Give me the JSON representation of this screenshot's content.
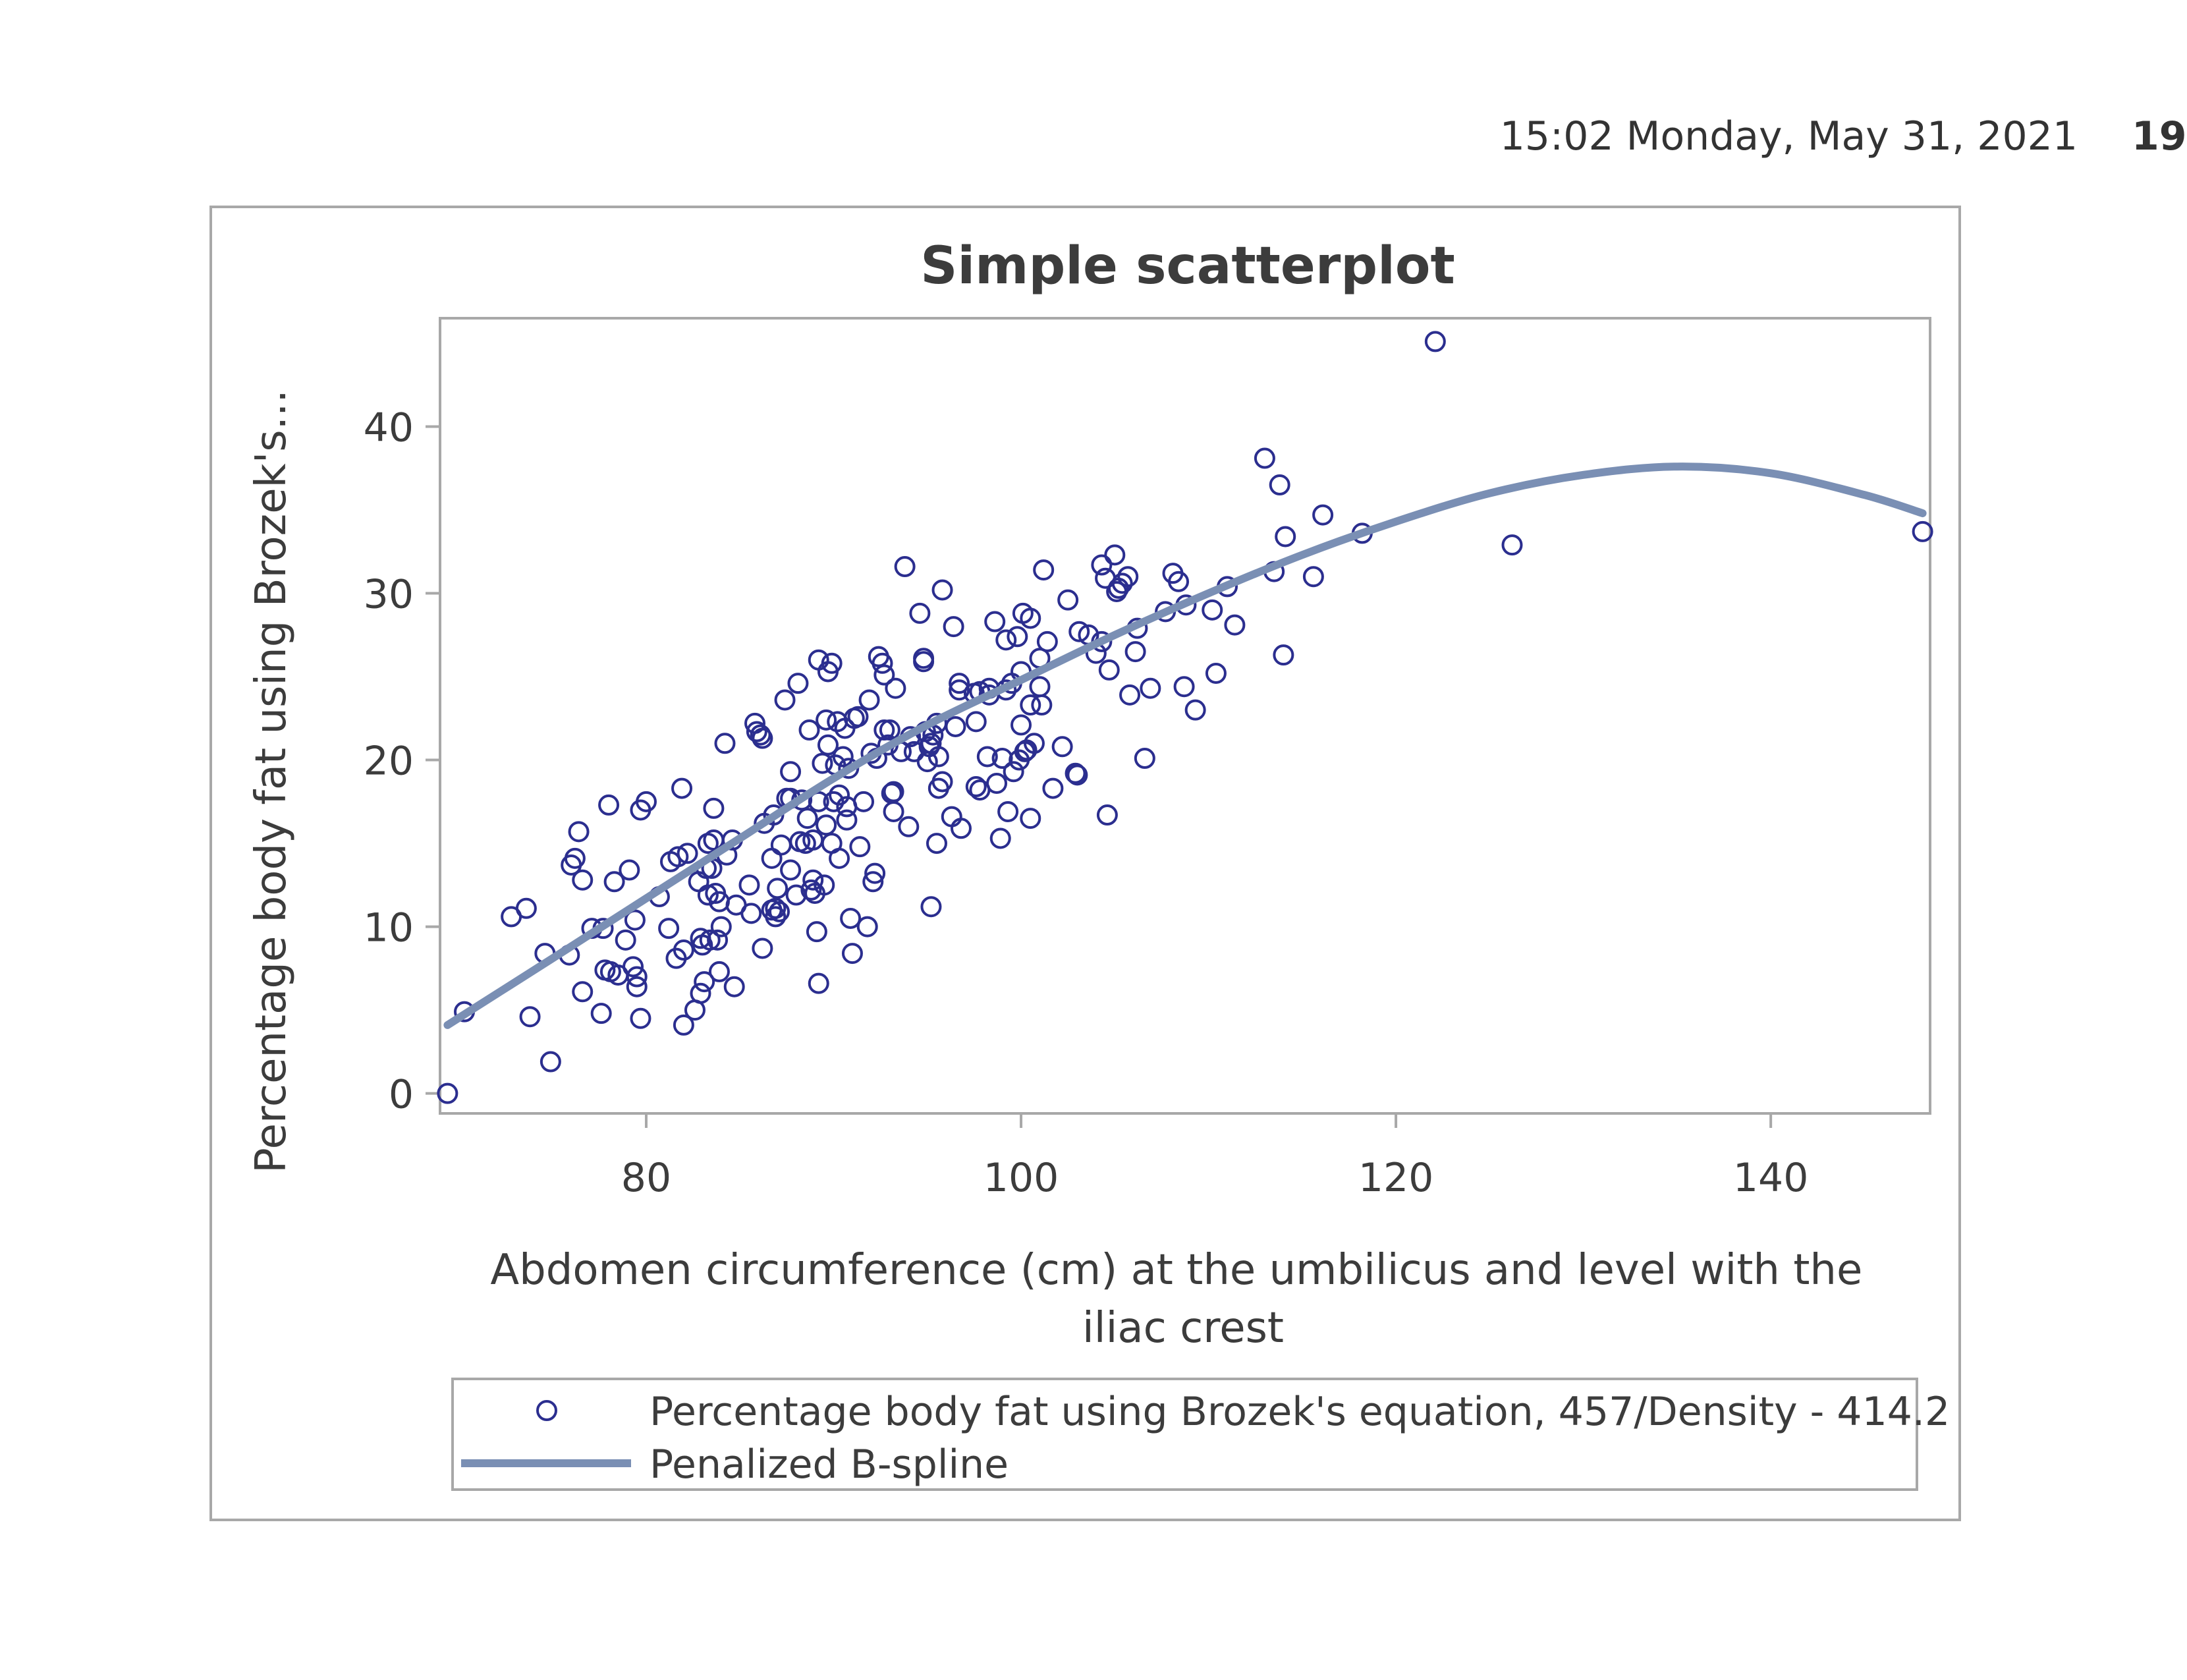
{
  "header": {
    "timestamp": "15:02 Monday, May 31, 2021",
    "page_number": "19"
  },
  "colors": {
    "marker": "#2b2e8f",
    "spline": "#7a8fb4",
    "frame": "#a8a8a8",
    "text": "#3c3c3c"
  },
  "chart_data": {
    "type": "scatter",
    "title": "Simple scatterplot",
    "xlabel": "Abdomen circumference (cm) at the umbilicus and level with the iliac crest",
    "xlabel_lines": [
      "Abdomen circumference (cm) at the umbilicus and level with the",
      "iliac crest"
    ],
    "ylabel": "Percentage body fat using Brozek's...",
    "xlim": [
      69,
      148.5
    ],
    "ylim": [
      -1.2,
      46.5
    ],
    "xticks": [
      80,
      100,
      120,
      140
    ],
    "yticks": [
      0,
      10,
      20,
      30,
      40
    ],
    "grid": false,
    "legend_position": "bottom",
    "legend": [
      {
        "label": "Percentage body fat using Brozek's equation, 457/Density - 414.2",
        "symbol": "circle"
      },
      {
        "label": "Penalized B-spline",
        "symbol": "line"
      }
    ],
    "series": [
      {
        "name": "Percentage body fat using Brozek's equation, 457/Density - 414.2",
        "kind": "scatter",
        "points": [
          [
            69.4,
            0
          ],
          [
            70.3,
            4.9
          ],
          [
            72.8,
            10.6
          ],
          [
            73.6,
            11.1
          ],
          [
            73.8,
            4.6
          ],
          [
            74.6,
            8.4
          ],
          [
            74.9,
            1.9
          ],
          [
            75.9,
            8.3
          ],
          [
            76,
            13.7
          ],
          [
            76.2,
            14.1
          ],
          [
            76.4,
            15.7
          ],
          [
            76.6,
            12.8
          ],
          [
            76.6,
            6.1
          ],
          [
            77.1,
            9.9
          ],
          [
            77.6,
            4.8
          ],
          [
            77.7,
            9.9
          ],
          [
            77.8,
            7.4
          ],
          [
            78,
            17.3
          ],
          [
            78.1,
            7.3
          ],
          [
            78.3,
            12.7
          ],
          [
            78.5,
            7.1
          ],
          [
            78.9,
            9.2
          ],
          [
            79.1,
            13.4
          ],
          [
            79.3,
            7.6
          ],
          [
            79.4,
            10.4
          ],
          [
            79.5,
            6.4
          ],
          [
            79.5,
            7
          ],
          [
            79.7,
            17
          ],
          [
            79.7,
            4.5
          ],
          [
            80,
            17.5
          ],
          [
            80.7,
            11.8
          ],
          [
            81.2,
            9.9
          ],
          [
            81.3,
            13.9
          ],
          [
            81.6,
            8.1
          ],
          [
            81.7,
            14.2
          ],
          [
            81.9,
            18.3
          ],
          [
            82,
            4.1
          ],
          [
            82,
            8.6
          ],
          [
            82.2,
            14.4
          ],
          [
            82.6,
            5
          ],
          [
            82.8,
            12.7
          ],
          [
            82.9,
            9.3
          ],
          [
            82.9,
            6
          ],
          [
            83,
            8.9
          ],
          [
            83.1,
            6.7
          ],
          [
            83.2,
            13.5
          ],
          [
            83.3,
            15
          ],
          [
            83.3,
            11.9
          ],
          [
            83.4,
            9.2
          ],
          [
            83.5,
            13.5
          ],
          [
            83.6,
            17.1
          ],
          [
            83.6,
            15.2
          ],
          [
            83.7,
            12
          ],
          [
            83.8,
            9.2
          ],
          [
            83.9,
            7.3
          ],
          [
            83.9,
            11.5
          ],
          [
            84,
            10
          ],
          [
            84.2,
            21
          ],
          [
            84.3,
            14.3
          ],
          [
            84.6,
            15.2
          ],
          [
            84.7,
            6.4
          ],
          [
            84.8,
            11.3
          ],
          [
            85.5,
            12.5
          ],
          [
            85.6,
            10.8
          ],
          [
            85.8,
            22.2
          ],
          [
            85.9,
            21.7
          ],
          [
            86.1,
            21.5
          ],
          [
            86.2,
            21.3
          ],
          [
            86.2,
            8.7
          ],
          [
            86.3,
            16.2
          ],
          [
            86.7,
            14.1
          ],
          [
            86.7,
            11
          ],
          [
            86.8,
            16.7
          ],
          [
            86.9,
            10.6
          ],
          [
            86.9,
            11.1
          ],
          [
            87,
            12.3
          ],
          [
            87.1,
            10.9
          ],
          [
            87.2,
            14.9
          ],
          [
            87.4,
            23.6
          ],
          [
            87.5,
            17.7
          ],
          [
            87.7,
            17.7
          ],
          [
            87.7,
            19.3
          ],
          [
            87.7,
            13.4
          ],
          [
            88,
            11.9
          ],
          [
            88.1,
            24.6
          ],
          [
            88.2,
            15.1
          ],
          [
            88.3,
            17.6
          ],
          [
            88.5,
            15
          ],
          [
            88.6,
            16.5
          ],
          [
            88.7,
            21.8
          ],
          [
            88.8,
            12.2
          ],
          [
            88.9,
            15.2
          ],
          [
            88.9,
            12.8
          ],
          [
            89,
            12
          ],
          [
            89.1,
            9.7
          ],
          [
            89.2,
            17.5
          ],
          [
            89.2,
            6.6
          ],
          [
            89.2,
            26
          ],
          [
            89.4,
            19.8
          ],
          [
            89.5,
            12.5
          ],
          [
            89.6,
            16.1
          ],
          [
            89.6,
            22.4
          ],
          [
            89.7,
            25.3
          ],
          [
            89.7,
            20.9
          ],
          [
            89.9,
            15
          ],
          [
            89.9,
            25.8
          ],
          [
            90,
            17.5
          ],
          [
            90.1,
            19.7
          ],
          [
            90.2,
            22.3
          ],
          [
            90.3,
            17.9
          ],
          [
            90.3,
            14.1
          ],
          [
            90.5,
            20.2
          ],
          [
            90.6,
            21.9
          ],
          [
            90.7,
            16.4
          ],
          [
            90.7,
            17.2
          ],
          [
            90.8,
            19.5
          ],
          [
            90.9,
            10.5
          ],
          [
            91,
            8.4
          ],
          [
            91.1,
            22.5
          ],
          [
            91.3,
            22.6
          ],
          [
            91.4,
            14.8
          ],
          [
            91.6,
            17.5
          ],
          [
            91.8,
            10
          ],
          [
            91.9,
            23.6
          ],
          [
            92,
            20.4
          ],
          [
            92.1,
            12.7
          ],
          [
            92.2,
            13.2
          ],
          [
            92.3,
            20.1
          ],
          [
            92.4,
            26.2
          ],
          [
            92.6,
            25.8
          ],
          [
            92.7,
            21.8
          ],
          [
            92.7,
            25.1
          ],
          [
            92.9,
            20.9
          ],
          [
            93,
            21.8
          ],
          [
            93.1,
            18
          ],
          [
            93.2,
            16.9
          ],
          [
            93.2,
            18.1
          ],
          [
            93.3,
            24.3
          ],
          [
            93.6,
            20.5
          ],
          [
            93.8,
            31.6
          ],
          [
            94,
            16
          ],
          [
            94.1,
            21.4
          ],
          [
            94.3,
            20.5
          ],
          [
            94.6,
            28.8
          ],
          [
            94.8,
            26.1
          ],
          [
            94.8,
            25.9
          ],
          [
            94.9,
            21.7
          ],
          [
            95,
            19.9
          ],
          [
            95.1,
            20.8
          ],
          [
            95.2,
            21
          ],
          [
            95.2,
            11.2
          ],
          [
            95.3,
            21.5
          ],
          [
            95.5,
            22.2
          ],
          [
            95.5,
            15
          ],
          [
            95.6,
            18.3
          ],
          [
            95.6,
            20.2
          ],
          [
            95.8,
            18.7
          ],
          [
            95.8,
            30.2
          ],
          [
            96.3,
            16.6
          ],
          [
            96.4,
            28
          ],
          [
            96.5,
            22
          ],
          [
            96.7,
            24.6
          ],
          [
            96.7,
            24.2
          ],
          [
            96.8,
            15.9
          ],
          [
            97.5,
            24
          ],
          [
            97.6,
            18.4
          ],
          [
            97.6,
            22.3
          ],
          [
            97.8,
            24.1
          ],
          [
            97.8,
            18.2
          ],
          [
            98.2,
            20.2
          ],
          [
            98.3,
            24.3
          ],
          [
            98.3,
            23.9
          ],
          [
            98.6,
            28.3
          ],
          [
            98.7,
            18.6
          ],
          [
            98.9,
            15.3
          ],
          [
            99,
            20.1
          ],
          [
            99.2,
            27.2
          ],
          [
            99.2,
            24.2
          ],
          [
            99.3,
            16.9
          ],
          [
            99.5,
            24.6
          ],
          [
            99.6,
            19.3
          ],
          [
            99.8,
            27.4
          ],
          [
            99.9,
            20
          ],
          [
            100,
            22.1
          ],
          [
            100,
            25.3
          ],
          [
            100.1,
            28.8
          ],
          [
            100.2,
            20.5
          ],
          [
            100.3,
            20.6
          ],
          [
            100.5,
            16.5
          ],
          [
            100.5,
            28.5
          ],
          [
            100.5,
            23.3
          ],
          [
            100.7,
            21
          ],
          [
            101,
            26.1
          ],
          [
            101,
            24.4
          ],
          [
            101.1,
            23.3
          ],
          [
            101.2,
            31.4
          ],
          [
            101.4,
            27.1
          ],
          [
            101.7,
            18.3
          ],
          [
            102.2,
            20.8
          ],
          [
            102.5,
            29.6
          ],
          [
            102.9,
            19.2
          ],
          [
            103,
            19.1
          ],
          [
            103.1,
            27.7
          ],
          [
            103.6,
            27.5
          ],
          [
            104,
            26.4
          ],
          [
            104.3,
            27.1
          ],
          [
            104.3,
            31.7
          ],
          [
            104.5,
            30.9
          ],
          [
            104.6,
            16.7
          ],
          [
            104.7,
            25.4
          ],
          [
            105,
            32.3
          ],
          [
            105.1,
            30.1
          ],
          [
            105.2,
            30.3
          ],
          [
            105.4,
            30.6
          ],
          [
            105.7,
            31
          ],
          [
            105.8,
            23.9
          ],
          [
            106.1,
            26.5
          ],
          [
            106.2,
            27.9
          ],
          [
            106.6,
            20.1
          ],
          [
            106.9,
            24.3
          ],
          [
            107.7,
            28.9
          ],
          [
            108.1,
            31.2
          ],
          [
            108.4,
            30.7
          ],
          [
            108.7,
            24.4
          ],
          [
            108.8,
            29.3
          ],
          [
            109.3,
            23
          ],
          [
            110.2,
            29
          ],
          [
            110.4,
            25.2
          ],
          [
            111,
            30.4
          ],
          [
            111.4,
            28.1
          ],
          [
            113,
            38.1
          ],
          [
            113.5,
            31.3
          ],
          [
            113.8,
            36.5
          ],
          [
            114,
            26.3
          ],
          [
            114.1,
            33.4
          ],
          [
            115.6,
            31
          ],
          [
            116.1,
            34.7
          ],
          [
            118.2,
            33.6
          ],
          [
            122.1,
            45.1
          ],
          [
            126.2,
            32.9
          ],
          [
            148.1,
            33.7
          ]
        ]
      },
      {
        "name": "Penalized B-spline",
        "kind": "line",
        "points": [
          [
            69.4,
            4.1
          ],
          [
            75,
            8.1
          ],
          [
            80,
            11.7
          ],
          [
            85,
            15.3
          ],
          [
            90,
            18.9
          ],
          [
            95,
            22.1
          ],
          [
            100,
            24.8
          ],
          [
            105,
            27.5
          ],
          [
            110,
            30
          ],
          [
            115,
            32.3
          ],
          [
            120,
            34.3
          ],
          [
            125,
            36
          ],
          [
            130,
            37.1
          ],
          [
            135,
            37.6
          ],
          [
            140,
            37.2
          ],
          [
            145,
            35.9
          ],
          [
            148.1,
            34.8
          ]
        ]
      }
    ]
  }
}
